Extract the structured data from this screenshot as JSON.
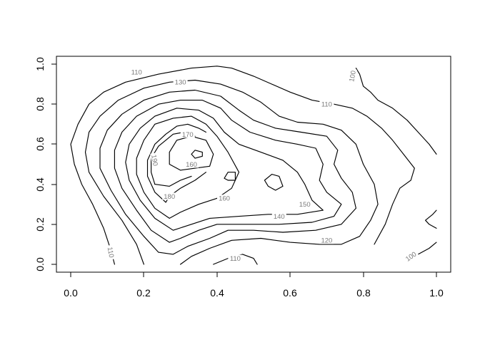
{
  "chart_data": {
    "type": "contour",
    "title": "",
    "xlabel": "",
    "ylabel": "",
    "xlim": [
      -0.04,
      1.04
    ],
    "ylim": [
      -0.04,
      1.04
    ],
    "x_ticks": [
      "0.0",
      "0.2",
      "0.4",
      "0.6",
      "0.8",
      "1.0"
    ],
    "y_ticks": [
      "0.0",
      "0.2",
      "0.4",
      "0.6",
      "0.8",
      "1.0"
    ],
    "levels": [
      {
        "level": 100,
        "paths": [
          [
            [
              0.78,
              0.98
            ],
            [
              0.79,
              0.95
            ],
            [
              0.8,
              0.89
            ],
            [
              0.82,
              0.86
            ],
            [
              0.84,
              0.82
            ],
            [
              0.88,
              0.78
            ],
            [
              0.92,
              0.72
            ],
            [
              0.95,
              0.66
            ],
            [
              0.98,
              0.6
            ],
            [
              1.0,
              0.55
            ]
          ],
          [
            [
              0.92,
              0.02
            ],
            [
              0.95,
              0.05
            ],
            [
              0.98,
              0.08
            ],
            [
              1.0,
              0.11
            ]
          ],
          [
            [
              1.0,
              0.18
            ],
            [
              0.98,
              0.2
            ],
            [
              0.97,
              0.22
            ],
            [
              0.99,
              0.25
            ],
            [
              1.0,
              0.27
            ]
          ]
        ]
      },
      {
        "level": 110,
        "paths": [
          [
            [
              0.12,
              0.0
            ],
            [
              0.11,
              0.07
            ],
            [
              0.09,
              0.18
            ],
            [
              0.06,
              0.3
            ],
            [
              0.03,
              0.4
            ],
            [
              0.01,
              0.5
            ],
            [
              0.0,
              0.6
            ],
            [
              0.02,
              0.7
            ],
            [
              0.05,
              0.8
            ],
            [
              0.09,
              0.86
            ],
            [
              0.15,
              0.91
            ],
            [
              0.24,
              0.95
            ],
            [
              0.33,
              0.98
            ],
            [
              0.4,
              0.99
            ],
            [
              0.44,
              0.98
            ],
            [
              0.5,
              0.94
            ],
            [
              0.55,
              0.9
            ],
            [
              0.6,
              0.86
            ],
            [
              0.66,
              0.82
            ],
            [
              0.72,
              0.8
            ],
            [
              0.77,
              0.78
            ],
            [
              0.81,
              0.74
            ],
            [
              0.85,
              0.68
            ],
            [
              0.88,
              0.62
            ],
            [
              0.91,
              0.55
            ],
            [
              0.94,
              0.48
            ],
            [
              0.93,
              0.42
            ],
            [
              0.9,
              0.38
            ],
            [
              0.88,
              0.3
            ],
            [
              0.86,
              0.2
            ],
            [
              0.83,
              0.1
            ]
          ],
          [
            [
              0.39,
              0.0
            ],
            [
              0.43,
              0.03
            ],
            [
              0.47,
              0.05
            ],
            [
              0.5,
              0.03
            ],
            [
              0.51,
              0.0
            ]
          ]
        ]
      },
      {
        "level": 120,
        "paths": [
          [
            [
              0.2,
              0.0
            ],
            [
              0.18,
              0.1
            ],
            [
              0.14,
              0.22
            ],
            [
              0.09,
              0.34
            ],
            [
              0.05,
              0.46
            ],
            [
              0.04,
              0.56
            ],
            [
              0.05,
              0.66
            ],
            [
              0.08,
              0.74
            ],
            [
              0.13,
              0.82
            ],
            [
              0.2,
              0.88
            ],
            [
              0.27,
              0.91
            ],
            [
              0.34,
              0.92
            ],
            [
              0.41,
              0.9
            ],
            [
              0.47,
              0.86
            ],
            [
              0.52,
              0.81
            ],
            [
              0.57,
              0.74
            ],
            [
              0.62,
              0.71
            ],
            [
              0.69,
              0.7
            ],
            [
              0.74,
              0.67
            ],
            [
              0.78,
              0.6
            ],
            [
              0.8,
              0.5
            ],
            [
              0.83,
              0.4
            ],
            [
              0.84,
              0.3
            ],
            [
              0.82,
              0.22
            ],
            [
              0.79,
              0.14
            ],
            [
              0.74,
              0.1
            ],
            [
              0.68,
              0.1
            ],
            [
              0.6,
              0.11
            ],
            [
              0.52,
              0.13
            ],
            [
              0.44,
              0.12
            ],
            [
              0.38,
              0.08
            ],
            [
              0.33,
              0.04
            ],
            [
              0.3,
              0.0
            ]
          ]
        ]
      },
      {
        "level": 130,
        "paths": [
          [
            [
              0.24,
              0.06
            ],
            [
              0.2,
              0.14
            ],
            [
              0.15,
              0.25
            ],
            [
              0.11,
              0.37
            ],
            [
              0.08,
              0.48
            ],
            [
              0.08,
              0.58
            ],
            [
              0.1,
              0.67
            ],
            [
              0.14,
              0.75
            ],
            [
              0.2,
              0.82
            ],
            [
              0.27,
              0.86
            ],
            [
              0.34,
              0.87
            ],
            [
              0.41,
              0.84
            ],
            [
              0.46,
              0.77
            ],
            [
              0.5,
              0.72
            ],
            [
              0.56,
              0.68
            ],
            [
              0.63,
              0.66
            ],
            [
              0.7,
              0.64
            ],
            [
              0.73,
              0.57
            ],
            [
              0.72,
              0.5
            ],
            [
              0.74,
              0.43
            ],
            [
              0.77,
              0.36
            ],
            [
              0.78,
              0.28
            ],
            [
              0.74,
              0.2
            ],
            [
              0.67,
              0.17
            ],
            [
              0.58,
              0.16
            ],
            [
              0.5,
              0.17
            ],
            [
              0.43,
              0.17
            ],
            [
              0.38,
              0.13
            ],
            [
              0.32,
              0.09
            ],
            [
              0.28,
              0.05
            ],
            [
              0.24,
              0.06
            ]
          ]
        ]
      },
      {
        "level": 140,
        "paths": [
          [
            [
              0.27,
              0.11
            ],
            [
              0.22,
              0.17
            ],
            [
              0.18,
              0.27
            ],
            [
              0.14,
              0.38
            ],
            [
              0.12,
              0.48
            ],
            [
              0.12,
              0.57
            ],
            [
              0.14,
              0.66
            ],
            [
              0.18,
              0.74
            ],
            [
              0.24,
              0.8
            ],
            [
              0.3,
              0.82
            ],
            [
              0.36,
              0.82
            ],
            [
              0.41,
              0.78
            ],
            [
              0.44,
              0.72
            ],
            [
              0.49,
              0.66
            ],
            [
              0.56,
              0.62
            ],
            [
              0.62,
              0.6
            ],
            [
              0.67,
              0.58
            ],
            [
              0.69,
              0.5
            ],
            [
              0.68,
              0.42
            ],
            [
              0.7,
              0.36
            ],
            [
              0.74,
              0.3
            ],
            [
              0.72,
              0.24
            ],
            [
              0.66,
              0.21
            ],
            [
              0.57,
              0.2
            ],
            [
              0.48,
              0.2
            ],
            [
              0.4,
              0.2
            ],
            [
              0.35,
              0.17
            ],
            [
              0.3,
              0.13
            ],
            [
              0.27,
              0.11
            ]
          ]
        ]
      },
      {
        "level": 150,
        "paths": [
          [
            [
              0.28,
              0.17
            ],
            [
              0.23,
              0.23
            ],
            [
              0.19,
              0.32
            ],
            [
              0.16,
              0.42
            ],
            [
              0.15,
              0.51
            ],
            [
              0.16,
              0.6
            ],
            [
              0.19,
              0.68
            ],
            [
              0.23,
              0.74
            ],
            [
              0.29,
              0.78
            ],
            [
              0.35,
              0.77
            ],
            [
              0.39,
              0.73
            ],
            [
              0.42,
              0.66
            ],
            [
              0.46,
              0.6
            ],
            [
              0.52,
              0.56
            ],
            [
              0.58,
              0.52
            ],
            [
              0.62,
              0.46
            ],
            [
              0.64,
              0.4
            ],
            [
              0.66,
              0.32
            ],
            [
              0.69,
              0.27
            ],
            [
              0.62,
              0.25
            ],
            [
              0.54,
              0.25
            ],
            [
              0.46,
              0.24
            ],
            [
              0.38,
              0.23
            ],
            [
              0.33,
              0.2
            ],
            [
              0.28,
              0.17
            ]
          ]
        ]
      },
      {
        "level": 160,
        "paths": [
          [
            [
              0.27,
              0.23
            ],
            [
              0.23,
              0.28
            ],
            [
              0.2,
              0.36
            ],
            [
              0.18,
              0.45
            ],
            [
              0.18,
              0.53
            ],
            [
              0.2,
              0.62
            ],
            [
              0.23,
              0.7
            ],
            [
              0.28,
              0.73
            ],
            [
              0.33,
              0.74
            ],
            [
              0.37,
              0.7
            ],
            [
              0.4,
              0.64
            ],
            [
              0.43,
              0.56
            ],
            [
              0.46,
              0.46
            ],
            [
              0.44,
              0.38
            ],
            [
              0.4,
              0.33
            ],
            [
              0.35,
              0.3
            ],
            [
              0.3,
              0.26
            ],
            [
              0.27,
              0.23
            ]
          ],
          [
            [
              0.27,
              0.5
            ],
            [
              0.27,
              0.56
            ],
            [
              0.29,
              0.62
            ],
            [
              0.33,
              0.64
            ],
            [
              0.37,
              0.62
            ],
            [
              0.39,
              0.55
            ],
            [
              0.38,
              0.49
            ],
            [
              0.34,
              0.48
            ],
            [
              0.3,
              0.47
            ],
            [
              0.27,
              0.5
            ]
          ],
          [
            [
              0.42,
              0.43
            ],
            [
              0.43,
              0.46
            ],
            [
              0.45,
              0.46
            ],
            [
              0.45,
              0.42
            ],
            [
              0.43,
              0.42
            ],
            [
              0.42,
              0.43
            ]
          ],
          [
            [
              0.53,
              0.42
            ],
            [
              0.55,
              0.45
            ],
            [
              0.57,
              0.44
            ],
            [
              0.58,
              0.39
            ],
            [
              0.56,
              0.37
            ],
            [
              0.54,
              0.39
            ],
            [
              0.53,
              0.42
            ]
          ]
        ]
      },
      {
        "level": 170,
        "paths": [
          [
            [
              0.26,
              0.31
            ],
            [
              0.23,
              0.36
            ],
            [
              0.21,
              0.44
            ],
            [
              0.21,
              0.52
            ],
            [
              0.23,
              0.6
            ],
            [
              0.26,
              0.65
            ],
            [
              0.29,
              0.69
            ],
            [
              0.32,
              0.7
            ],
            [
              0.35,
              0.68
            ],
            [
              0.37,
              0.66
            ]
          ],
          [
            [
              0.37,
              0.46
            ],
            [
              0.34,
              0.42
            ],
            [
              0.3,
              0.38
            ],
            [
              0.27,
              0.34
            ],
            [
              0.26,
              0.31
            ]
          ]
        ]
      },
      {
        "level": 180,
        "paths": [
          [
            [
              0.23,
              0.4
            ],
            [
              0.22,
              0.46
            ],
            [
              0.22,
              0.53
            ],
            [
              0.24,
              0.59
            ],
            [
              0.26,
              0.62
            ],
            [
              0.28,
              0.65
            ],
            [
              0.31,
              0.66
            ],
            [
              0.34,
              0.64
            ]
          ],
          [
            [
              0.33,
              0.44
            ],
            [
              0.3,
              0.42
            ],
            [
              0.27,
              0.39
            ],
            [
              0.23,
              0.4
            ]
          ]
        ]
      },
      {
        "level": 190,
        "paths": [
          [
            [
              0.33,
              0.55
            ],
            [
              0.34,
              0.57
            ],
            [
              0.36,
              0.56
            ],
            [
              0.36,
              0.54
            ],
            [
              0.34,
              0.53
            ],
            [
              0.33,
              0.55
            ]
          ]
        ]
      }
    ],
    "contour_labels": [
      {
        "text": "100",
        "x": 0.77,
        "y": 0.94,
        "angle": -80
      },
      {
        "text": "100",
        "x": 0.93,
        "y": 0.04,
        "angle": -35
      },
      {
        "text": "110",
        "x": 0.18,
        "y": 0.96,
        "angle": 0
      },
      {
        "text": "110",
        "x": 0.7,
        "y": 0.8,
        "angle": 0
      },
      {
        "text": "110",
        "x": 0.45,
        "y": 0.03,
        "angle": 0
      },
      {
        "text": "110",
        "x": 0.11,
        "y": 0.06,
        "angle": 80
      },
      {
        "text": "120",
        "x": 0.7,
        "y": 0.12,
        "angle": 0
      },
      {
        "text": "130",
        "x": 0.3,
        "y": 0.91,
        "angle": 0
      },
      {
        "text": "140",
        "x": 0.57,
        "y": 0.24,
        "angle": 0
      },
      {
        "text": "150",
        "x": 0.64,
        "y": 0.3,
        "angle": 0
      },
      {
        "text": "160",
        "x": 0.42,
        "y": 0.33,
        "angle": 0
      },
      {
        "text": "160",
        "x": 0.33,
        "y": 0.5,
        "angle": 0
      },
      {
        "text": "170",
        "x": 0.32,
        "y": 0.65,
        "angle": 0
      },
      {
        "text": "180",
        "x": 0.27,
        "y": 0.34,
        "angle": 0
      },
      {
        "text": "190",
        "x": 0.23,
        "y": 0.52,
        "angle": 80
      }
    ]
  }
}
